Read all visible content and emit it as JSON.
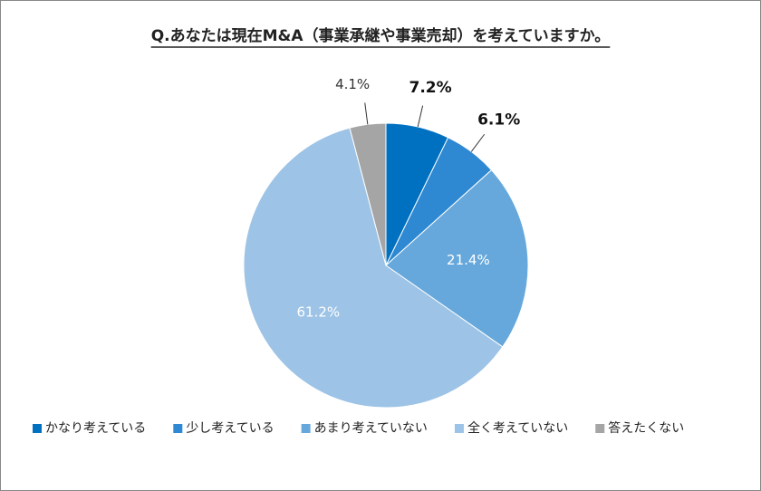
{
  "chart_data": {
    "type": "pie",
    "title": "Q.あなたは現在M&A（事業承継や事業売却）を考えていますか。",
    "categories": [
      "かなり考えている",
      "少し考えている",
      "あまり考えていない",
      "全く考えていない",
      "答えたくない"
    ],
    "values": [
      7.2,
      6.1,
      21.4,
      61.2,
      4.1
    ],
    "value_labels": [
      "7.2%",
      "6.1%",
      "21.4%",
      "61.2%",
      "4.1%"
    ],
    "colors": [
      "#0070c0",
      "#2e88d2",
      "#66a8db",
      "#9dc3e6",
      "#a5a5a5"
    ],
    "legend": "bottom"
  }
}
